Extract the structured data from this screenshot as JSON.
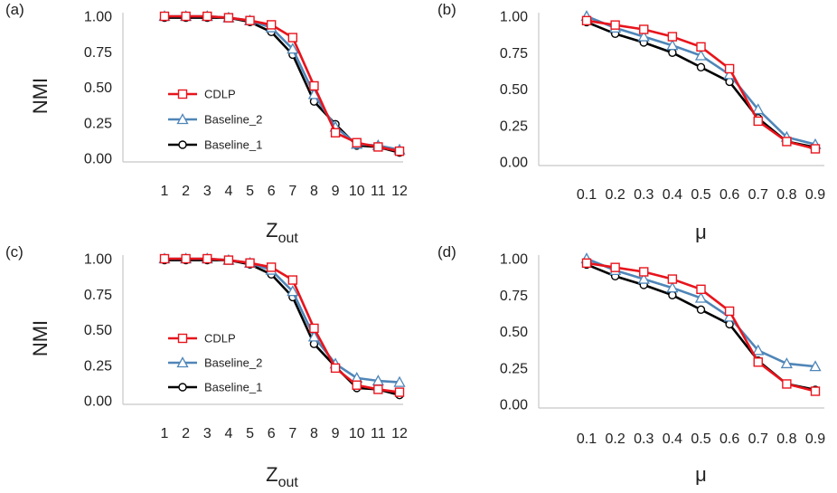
{
  "colors": {
    "CDLP": "#e8141c",
    "Baseline_2": "#4f86b8",
    "Baseline_1": "#000000",
    "axis": "#c8c8c8"
  },
  "chart_data": [
    {
      "type": "line",
      "panel_label": "(a)",
      "ylabel": "NMI",
      "xlabel": "Z",
      "xlabel_sub": "out",
      "categories": [
        "1",
        "2",
        "3",
        "4",
        "5",
        "6",
        "7",
        "8",
        "9",
        "10",
        "11",
        "12"
      ],
      "ylim": [
        0,
        1
      ],
      "yticks": [
        "0.00",
        "0.25",
        "0.50",
        "0.75",
        "1.00"
      ],
      "grid": false,
      "legend": {
        "placement": "center-left",
        "order": [
          "CDLP",
          "Baseline_2",
          "Baseline_1"
        ]
      },
      "series": [
        {
          "name": "CDLP",
          "marker": "square",
          "values": [
            1.0,
            1.0,
            1.0,
            0.99,
            0.97,
            0.94,
            0.85,
            0.51,
            0.18,
            0.11,
            0.08,
            0.05
          ]
        },
        {
          "name": "Baseline_2",
          "marker": "triangle",
          "values": [
            1.0,
            1.0,
            1.0,
            0.99,
            0.97,
            0.92,
            0.77,
            0.45,
            0.22,
            0.1,
            0.09,
            0.06
          ]
        },
        {
          "name": "Baseline_1",
          "marker": "circle",
          "values": [
            0.99,
            0.99,
            0.99,
            0.99,
            0.96,
            0.89,
            0.73,
            0.4,
            0.24,
            0.09,
            0.08,
            0.04
          ]
        }
      ]
    },
    {
      "type": "line",
      "panel_label": "(b)",
      "ylabel": "",
      "xlabel": "μ",
      "xlabel_sub": "",
      "categories": [
        "0.1",
        "0.2",
        "0.3",
        "0.4",
        "0.5",
        "0.6",
        "0.7",
        "0.8",
        "0.9"
      ],
      "ylim": [
        0,
        1
      ],
      "yticks": [
        "0.00",
        "0.25",
        "0.50",
        "0.75",
        "1.00"
      ],
      "grid": false,
      "legend": null,
      "series": [
        {
          "name": "CDLP",
          "marker": "square",
          "values": [
            0.97,
            0.94,
            0.91,
            0.86,
            0.79,
            0.64,
            0.28,
            0.14,
            0.09
          ]
        },
        {
          "name": "Baseline_2",
          "marker": "triangle",
          "values": [
            1.0,
            0.92,
            0.86,
            0.8,
            0.73,
            0.6,
            0.36,
            0.17,
            0.12
          ]
        },
        {
          "name": "Baseline_1",
          "marker": "circle",
          "values": [
            0.96,
            0.88,
            0.82,
            0.75,
            0.65,
            0.55,
            0.3,
            0.14,
            0.1
          ]
        }
      ]
    },
    {
      "type": "line",
      "panel_label": "(c)",
      "ylabel": "NMI",
      "xlabel": "Z",
      "xlabel_sub": "out",
      "categories": [
        "1",
        "2",
        "3",
        "4",
        "5",
        "6",
        "7",
        "8",
        "9",
        "10",
        "11",
        "12"
      ],
      "ylim": [
        0,
        1
      ],
      "yticks": [
        "0.00",
        "0.25",
        "0.50",
        "0.75",
        "1.00"
      ],
      "grid": false,
      "legend": {
        "placement": "center-left",
        "order": [
          "CDLP",
          "Baseline_2",
          "Baseline_1"
        ]
      },
      "series": [
        {
          "name": "CDLP",
          "marker": "square",
          "values": [
            1.0,
            1.0,
            1.0,
            0.99,
            0.97,
            0.94,
            0.85,
            0.51,
            0.23,
            0.11,
            0.08,
            0.06
          ]
        },
        {
          "name": "Baseline_2",
          "marker": "triangle",
          "values": [
            1.0,
            1.0,
            1.0,
            0.99,
            0.97,
            0.92,
            0.77,
            0.45,
            0.26,
            0.16,
            0.14,
            0.13
          ]
        },
        {
          "name": "Baseline_1",
          "marker": "circle",
          "values": [
            0.99,
            0.99,
            0.99,
            0.99,
            0.96,
            0.89,
            0.73,
            0.4,
            0.24,
            0.09,
            0.08,
            0.04
          ]
        }
      ]
    },
    {
      "type": "line",
      "panel_label": "(d)",
      "ylabel": "",
      "xlabel": "μ",
      "xlabel_sub": "",
      "categories": [
        "0.1",
        "0.2",
        "0.3",
        "0.4",
        "0.5",
        "0.6",
        "0.7",
        "0.8",
        "0.9"
      ],
      "ylim": [
        0,
        1
      ],
      "yticks": [
        "0.00",
        "0.25",
        "0.50",
        "0.75",
        "1.00"
      ],
      "grid": false,
      "legend": null,
      "series": [
        {
          "name": "CDLP",
          "marker": "square",
          "values": [
            0.97,
            0.94,
            0.91,
            0.86,
            0.79,
            0.64,
            0.29,
            0.14,
            0.09
          ]
        },
        {
          "name": "Baseline_2",
          "marker": "triangle",
          "values": [
            1.0,
            0.92,
            0.86,
            0.8,
            0.73,
            0.6,
            0.37,
            0.28,
            0.26
          ]
        },
        {
          "name": "Baseline_1",
          "marker": "circle",
          "values": [
            0.96,
            0.88,
            0.82,
            0.75,
            0.65,
            0.55,
            0.3,
            0.14,
            0.1
          ]
        }
      ]
    }
  ]
}
